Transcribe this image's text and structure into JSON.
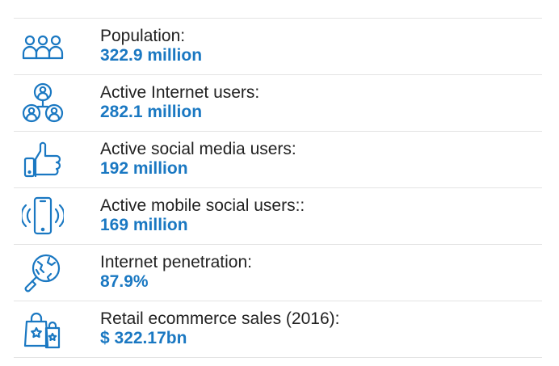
{
  "colors": {
    "accent": "#1a78c2",
    "label": "#222222",
    "divider": "#e3e3e3"
  },
  "stats": [
    {
      "icon": "population-icon",
      "label": "Population:",
      "value": "322.9 million"
    },
    {
      "icon": "network-users-icon",
      "label": "Active Internet users:",
      "value": "282.1 million"
    },
    {
      "icon": "thumbs-up-phone-icon",
      "label": "Active social media users:",
      "value": "192 million"
    },
    {
      "icon": "vibrating-phone-icon",
      "label": "Active mobile social users::",
      "value": "169 million"
    },
    {
      "icon": "globe-magnifier-icon",
      "label": "Internet penetration:",
      "value": "87.9%"
    },
    {
      "icon": "shopping-bags-icon",
      "label": "Retail ecommerce sales (2016):",
      "value": "$ 322.17bn"
    }
  ]
}
